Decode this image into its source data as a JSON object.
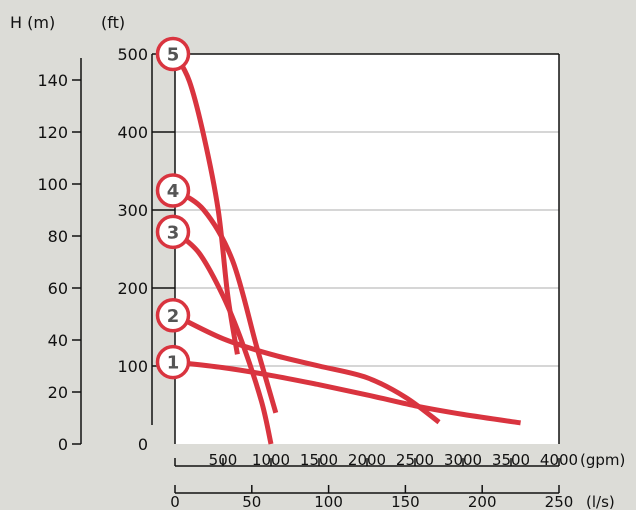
{
  "colors": {
    "background": "#dcdcd7",
    "plot_area": "#ffffff",
    "curve": "#d9343f",
    "grid": "#bdbdbd",
    "axis": "#111111",
    "badge_fill": "#ffffff",
    "badge_text": "#555555"
  },
  "chart_data": {
    "type": "line",
    "title": "",
    "left_axis_m": {
      "unit_label": "H (m)",
      "range": [
        0,
        150
      ],
      "ticks": [
        "0",
        "20",
        "40",
        "60",
        "80",
        "100",
        "120",
        "140"
      ]
    },
    "left_axis_ft": {
      "unit_label": "(ft)",
      "range": [
        0,
        500
      ],
      "ticks": [
        "0",
        "100",
        "200",
        "300",
        "400",
        "500"
      ]
    },
    "bottom_axis_gpm": {
      "unit_label": "(gpm)",
      "range": [
        0,
        4000
      ],
      "ticks": [
        "500",
        "1000",
        "1500",
        "2000",
        "2500",
        "3000",
        "3500",
        "4000"
      ]
    },
    "bottom_axis_ls": {
      "unit_label": "(l/s)",
      "range": [
        0,
        250
      ],
      "ticks": [
        "0",
        "50",
        "100",
        "150",
        "200",
        "250"
      ]
    },
    "grid": true,
    "grid_lines_ft": [
      100,
      200,
      300,
      400
    ],
    "series": [
      {
        "name": "1",
        "points": [
          [
            0,
            105
          ],
          [
            500,
            98
          ],
          [
            1000,
            88
          ],
          [
            1500,
            76
          ],
          [
            2000,
            63
          ],
          [
            2500,
            49
          ],
          [
            3000,
            38
          ],
          [
            3600,
            27
          ]
        ]
      },
      {
        "name": "2",
        "points": [
          [
            0,
            165
          ],
          [
            500,
            135
          ],
          [
            1000,
            115
          ],
          [
            1500,
            100
          ],
          [
            2000,
            85
          ],
          [
            2400,
            60
          ],
          [
            2750,
            28
          ]
        ]
      },
      {
        "name": "3",
        "points": [
          [
            0,
            272
          ],
          [
            250,
            245
          ],
          [
            500,
            190
          ],
          [
            700,
            130
          ],
          [
            900,
            55
          ],
          [
            1000,
            0
          ]
        ]
      },
      {
        "name": "4",
        "points": [
          [
            0,
            325
          ],
          [
            300,
            300
          ],
          [
            600,
            235
          ],
          [
            850,
            125
          ],
          [
            1050,
            40
          ]
        ]
      },
      {
        "name": "5",
        "points": [
          [
            0,
            500
          ],
          [
            150,
            465
          ],
          [
            300,
            395
          ],
          [
            450,
            300
          ],
          [
            550,
            190
          ],
          [
            650,
            115
          ]
        ]
      }
    ]
  }
}
